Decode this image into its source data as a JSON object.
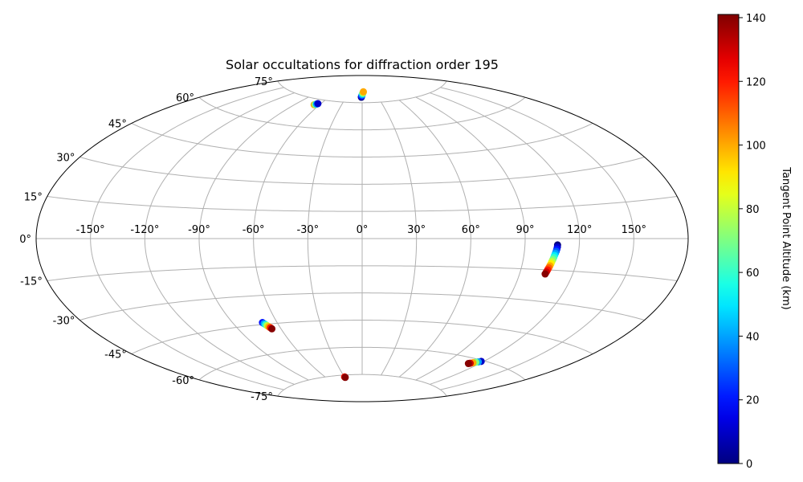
{
  "chart_data": {
    "type": "scatter",
    "projection": "aitoff",
    "title": "Solar occultations for diffraction order 195",
    "xlabel": "",
    "ylabel": "",
    "grid": true,
    "longitude_ticks": [
      -150,
      -120,
      -90,
      -60,
      -30,
      0,
      30,
      60,
      90,
      120,
      150
    ],
    "longitude_tick_labels": [
      "-150°",
      "-120°",
      "-90°",
      "-60°",
      "-30°",
      "0°",
      "30°",
      "60°",
      "90°",
      "120°",
      "150°"
    ],
    "latitude_ticks": [
      -75,
      -60,
      -45,
      -30,
      -15,
      0,
      15,
      30,
      45,
      60,
      75
    ],
    "latitude_tick_labels": [
      "-75°",
      "-60°",
      "-45°",
      "-30°",
      "-15°",
      "0°",
      "15°",
      "30°",
      "45°",
      "60°",
      "75°"
    ],
    "colorbar": {
      "label": "Tangent Point Altitude (km)",
      "colormap": "jet",
      "range": [
        0,
        141
      ],
      "ticks": [
        0,
        20,
        40,
        60,
        80,
        100,
        120,
        140
      ],
      "tick_labels": [
        "0",
        "20",
        "40",
        "60",
        "80",
        "100",
        "120",
        "140"
      ]
    },
    "series": [
      {
        "points": [
          {
            "lon": -67,
            "lat": 72,
            "alt": 100
          },
          {
            "lon": -66,
            "lat": 72.2,
            "alt": 70
          },
          {
            "lon": -65,
            "lat": 72.5,
            "alt": 40
          },
          {
            "lon": -64,
            "lat": 72.8,
            "alt": 10
          }
        ]
      },
      {
        "points": [
          {
            "lon": -1.5,
            "lat": 78,
            "alt": 0
          },
          {
            "lon": -1,
            "lat": 78.6,
            "alt": 20
          },
          {
            "lon": 0,
            "lat": 79.3,
            "alt": 40
          },
          {
            "lon": 1,
            "lat": 80,
            "alt": 60
          },
          {
            "lon": 2,
            "lat": 80.5,
            "alt": 80
          },
          {
            "lon": 3,
            "lat": 81,
            "alt": 100
          }
        ]
      },
      {
        "points": [
          {
            "lon": 108,
            "lat": -3,
            "alt": 0
          },
          {
            "lon": 108,
            "lat": -4,
            "alt": 10
          },
          {
            "lon": 107.8,
            "lat": -5,
            "alt": 20
          },
          {
            "lon": 107.6,
            "lat": -6,
            "alt": 30
          },
          {
            "lon": 107.3,
            "lat": -7,
            "alt": 40
          },
          {
            "lon": 107,
            "lat": -8,
            "alt": 50
          },
          {
            "lon": 106.8,
            "lat": -9,
            "alt": 60
          },
          {
            "lon": 106.5,
            "lat": -10,
            "alt": 70
          },
          {
            "lon": 106.2,
            "lat": -11,
            "alt": 80
          },
          {
            "lon": 106,
            "lat": -12,
            "alt": 90
          },
          {
            "lon": 105.7,
            "lat": -13,
            "alt": 100
          },
          {
            "lon": 105.4,
            "lat": -14,
            "alt": 110
          },
          {
            "lon": 105.1,
            "lat": -15,
            "alt": 120
          },
          {
            "lon": 104.8,
            "lat": -16,
            "alt": 130
          },
          {
            "lon": 104.5,
            "lat": -17,
            "alt": 140
          }
        ]
      },
      {
        "points": [
          {
            "lon": -70,
            "lat": -44,
            "alt": 20
          },
          {
            "lon": -69.4,
            "lat": -44.6,
            "alt": 40
          },
          {
            "lon": -68.8,
            "lat": -45.2,
            "alt": 60
          },
          {
            "lon": -68.2,
            "lat": -45.8,
            "alt": 80
          },
          {
            "lon": -67.6,
            "lat": -46.4,
            "alt": 100
          },
          {
            "lon": -67,
            "lat": -47,
            "alt": 120
          },
          {
            "lon": -66.5,
            "lat": -47.6,
            "alt": 140
          }
        ]
      },
      {
        "points": [
          {
            "lon": -29.5,
            "lat": -76,
            "alt": 120
          },
          {
            "lon": -29,
            "lat": -76.3,
            "alt": 140
          }
        ]
      },
      {
        "points": [
          {
            "lon": 118,
            "lat": -60.5,
            "alt": 10
          },
          {
            "lon": 116.5,
            "lat": -61,
            "alt": 40
          },
          {
            "lon": 115,
            "lat": -61.4,
            "alt": 70
          },
          {
            "lon": 113.5,
            "lat": -61.9,
            "alt": 100
          },
          {
            "lon": 112,
            "lat": -62.4,
            "alt": 130
          },
          {
            "lon": 111,
            "lat": -62.7,
            "alt": 140
          }
        ]
      }
    ]
  }
}
